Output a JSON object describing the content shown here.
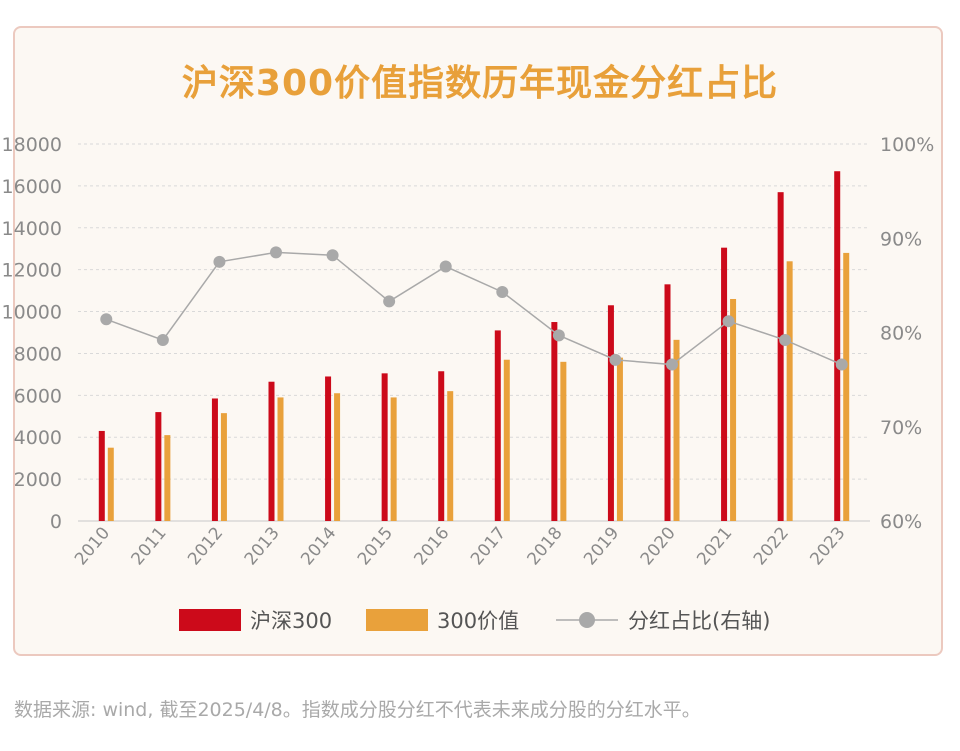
{
  "chart_data": {
    "type": "bar",
    "title": "沪深300价值指数历年现金分红占比",
    "categories": [
      "2010",
      "2011",
      "2012",
      "2013",
      "2014",
      "2015",
      "2016",
      "2017",
      "2018",
      "2019",
      "2020",
      "2021",
      "2022",
      "2023"
    ],
    "series": [
      {
        "name": "沪深300",
        "kind": "bar",
        "axis": "left",
        "color": "#cc0a1a",
        "values": [
          4300,
          5200,
          5850,
          6650,
          6900,
          7050,
          7150,
          9100,
          9500,
          10300,
          11300,
          13050,
          15700,
          16700
        ]
      },
      {
        "name": "300价值",
        "kind": "bar",
        "axis": "left",
        "color": "#e9a13b",
        "values": [
          3500,
          4100,
          5150,
          5900,
          6100,
          5900,
          6200,
          7700,
          7600,
          7800,
          8650,
          10600,
          12400,
          12800
        ]
      },
      {
        "name": "分红占比(右轴)",
        "kind": "line",
        "axis": "right",
        "color": "#a9a9a9",
        "values": [
          81.4,
          79.2,
          87.5,
          88.5,
          88.2,
          83.3,
          87.0,
          84.3,
          79.7,
          77.1,
          76.6,
          81.2,
          79.2,
          76.6
        ]
      }
    ],
    "ylim_left": [
      0,
      18000
    ],
    "yticks_left": [
      "0",
      "2000",
      "4000",
      "6000",
      "8000",
      "10000",
      "12000",
      "14000",
      "16000",
      "18000"
    ],
    "ylim_right": [
      60,
      100
    ],
    "yticks_right": [
      "60%",
      "70%",
      "80%",
      "90%",
      "100%"
    ],
    "grid": true,
    "legend_position": "bottom"
  },
  "footnote": "数据来源: wind, 截至2025/4/8。指数成分股分红不代表未来成分股的分红水平。"
}
